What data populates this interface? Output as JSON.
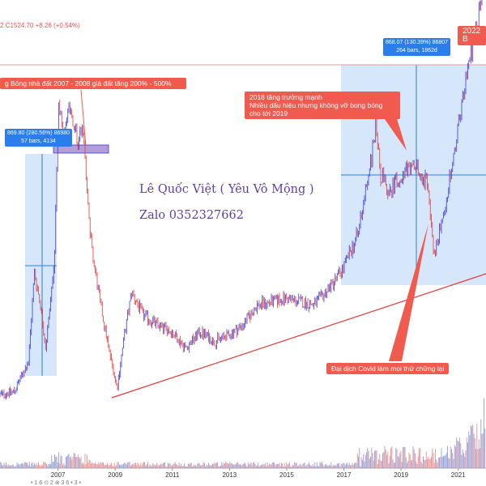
{
  "header": {
    "ohlc_text": "2  C1524.70  +8.26 (+0.54%)"
  },
  "top_right_badge": "2022 B",
  "annotations": {
    "bubble_note": "g Bông nhà đất 2007 - 2008 giá đất tăng 200% - 500%",
    "growth_note": "2018 tăng trưởng mạnh\nNhiều dấu hiệu nhưng không vỡ bong bóng\ncho tới 2019",
    "covid_note": "Đại dịch Covid làm mọi thứ chững lại"
  },
  "measure_1": {
    "line1": "869.80 (280.56%) 86980",
    "line2": "57 bars, 4134"
  },
  "measure_2": {
    "line1": "868.07 (130.39%) 86807",
    "line2": "264 bars, 1862d"
  },
  "author": {
    "name": "Lê Quốc Việt ( Yêu Vô Mộng )",
    "contact": "Zalo 0352327662"
  },
  "footer_text": "• 1 6  ⊙ 2 ⊗ 3 6 • 3 •",
  "colors": {
    "up": "#3b3bd6",
    "down": "#e53935",
    "trend": "#e53935",
    "box": "#cfe3fb",
    "callout": "#f05a4f",
    "measure": "#2b7de9"
  },
  "chart_data": {
    "type": "candlestick",
    "x_axis": {
      "ticks": [
        "2007",
        "2009",
        "2011",
        "2013",
        "2015",
        "2017",
        "2019",
        "2021"
      ]
    },
    "price_path": [
      {
        "t": 2005.0,
        "v": 280
      },
      {
        "t": 2005.5,
        "v": 290
      },
      {
        "t": 2006.0,
        "v": 380
      },
      {
        "t": 2006.2,
        "v": 650
      },
      {
        "t": 2006.4,
        "v": 560
      },
      {
        "t": 2006.6,
        "v": 420
      },
      {
        "t": 2006.9,
        "v": 680
      },
      {
        "t": 2007.05,
        "v": 1150
      },
      {
        "t": 2007.2,
        "v": 1050
      },
      {
        "t": 2007.4,
        "v": 1170
      },
      {
        "t": 2007.7,
        "v": 1040
      },
      {
        "t": 2007.9,
        "v": 1100
      },
      {
        "t": 2008.2,
        "v": 720
      },
      {
        "t": 2008.5,
        "v": 560
      },
      {
        "t": 2008.8,
        "v": 420
      },
      {
        "t": 2009.1,
        "v": 300
      },
      {
        "t": 2009.3,
        "v": 430
      },
      {
        "t": 2009.6,
        "v": 590
      },
      {
        "t": 2010.0,
        "v": 520
      },
      {
        "t": 2010.5,
        "v": 490
      },
      {
        "t": 2011.0,
        "v": 470
      },
      {
        "t": 2011.5,
        "v": 420
      },
      {
        "t": 2012.0,
        "v": 470
      },
      {
        "t": 2012.5,
        "v": 440
      },
      {
        "t": 2013.0,
        "v": 460
      },
      {
        "t": 2013.5,
        "v": 490
      },
      {
        "t": 2014.0,
        "v": 550
      },
      {
        "t": 2014.5,
        "v": 560
      },
      {
        "t": 2015.0,
        "v": 570
      },
      {
        "t": 2015.5,
        "v": 560
      },
      {
        "t": 2016.0,
        "v": 550
      },
      {
        "t": 2016.5,
        "v": 600
      },
      {
        "t": 2017.0,
        "v": 660
      },
      {
        "t": 2017.5,
        "v": 760
      },
      {
        "t": 2018.0,
        "v": 1000
      },
      {
        "t": 2018.15,
        "v": 1100
      },
      {
        "t": 2018.3,
        "v": 950
      },
      {
        "t": 2018.6,
        "v": 880
      },
      {
        "t": 2019.0,
        "v": 950
      },
      {
        "t": 2019.5,
        "v": 960
      },
      {
        "t": 2019.9,
        "v": 930
      },
      {
        "t": 2020.2,
        "v": 700
      },
      {
        "t": 2020.5,
        "v": 820
      },
      {
        "t": 2020.9,
        "v": 1000
      },
      {
        "t": 2021.3,
        "v": 1250
      },
      {
        "t": 2021.7,
        "v": 1400
      },
      {
        "t": 2022.0,
        "v": 1524.7
      }
    ],
    "last_close": 1524.7,
    "change": 8.26,
    "change_pct": 0.54
  }
}
